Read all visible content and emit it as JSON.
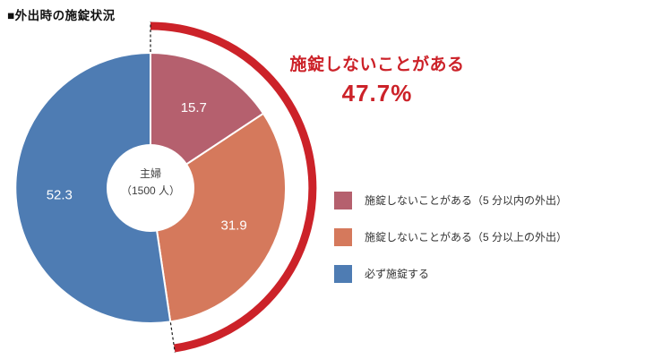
{
  "page": {
    "title": "■外出時の施錠状況"
  },
  "annotation": {
    "label": "施錠しないことがある",
    "value": "47.7%"
  },
  "donut_center": {
    "line1": "主婦",
    "line2": "（1500 人）"
  },
  "chart_data": {
    "type": "pie",
    "title": "外出時の施錠状況",
    "unit": "%",
    "donut": true,
    "start_angle_deg": 0,
    "direction": "clockwise",
    "center_label": "主婦（1500 人）",
    "segments": [
      {
        "label": "施錠しないことがある（5 分以内の外出）",
        "value": 15.7,
        "color": "#b5606e"
      },
      {
        "label": "施錠しないことがある（5 分以上の外出）",
        "value": 31.9,
        "color": "#d5795c"
      },
      {
        "label": "必ず施錠する",
        "value": 52.3,
        "color": "#4e7cb3"
      }
    ],
    "highlight_arc": {
      "label": "施錠しないことがある",
      "value": 47.7,
      "color": "#cc2229",
      "covers_segments": [
        0,
        1
      ]
    },
    "legend_position": "right"
  },
  "colors": {
    "highlight_red": "#cc2229",
    "connector": "#1a1a1a",
    "slice_label_text": "#ffffff"
  }
}
